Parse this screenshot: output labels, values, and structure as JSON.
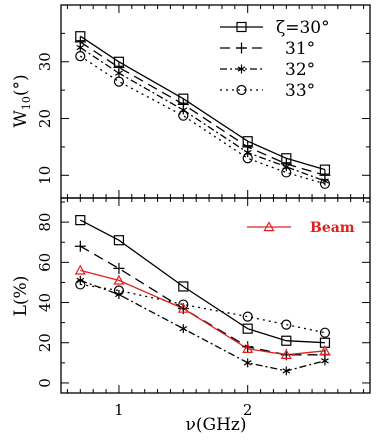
{
  "chart_data": [
    {
      "type": "line",
      "panel": "top",
      "ylabel_main": "W",
      "ylabel_sub": "10",
      "ylabel_tail": "(°)",
      "ylim": [
        6,
        40
      ],
      "yticks": [
        10,
        20,
        30
      ],
      "xlim": [
        0.55,
        2.95
      ],
      "grid": false,
      "legend_position": "top-right",
      "legend_prefix": "ζ=",
      "series": [
        {
          "name": "30°",
          "marker": "square",
          "dash": "",
          "x": [
            0.7,
            1.0,
            1.5,
            2.0,
            2.3,
            2.6
          ],
          "y": [
            34.5,
            30.0,
            23.5,
            16.0,
            13.0,
            11.0
          ]
        },
        {
          "name": "31°",
          "marker": "plus",
          "dash": "10,6",
          "x": [
            0.7,
            1.0,
            1.5,
            2.0,
            2.3,
            2.6
          ],
          "y": [
            33.5,
            29.0,
            22.5,
            15.0,
            12.0,
            10.0
          ]
        },
        {
          "name": "32°",
          "marker": "star",
          "dash": "7,3,2,3",
          "x": [
            0.7,
            1.0,
            1.5,
            2.0,
            2.3,
            2.6
          ],
          "y": [
            32.5,
            28.0,
            21.5,
            14.0,
            11.5,
            9.0
          ]
        },
        {
          "name": "33°",
          "marker": "circle",
          "dash": "2,4",
          "x": [
            0.7,
            1.0,
            1.5,
            2.0,
            2.3,
            2.6
          ],
          "y": [
            31.0,
            26.5,
            20.5,
            13.0,
            10.5,
            8.5
          ]
        }
      ]
    },
    {
      "type": "line",
      "panel": "bottom",
      "ylabel": "L(%)",
      "ylim": [
        -5,
        92
      ],
      "yticks": [
        0,
        20,
        40,
        60,
        80
      ],
      "xlim": [
        0.55,
        2.95
      ],
      "xticks": [
        1,
        2
      ],
      "xlabel": "ν(GHz)",
      "grid": false,
      "legend_position": "top-right",
      "series": [
        {
          "marker": "square",
          "dash": "",
          "color": "#000000",
          "x": [
            0.7,
            1.0,
            1.5,
            2.0,
            2.3,
            2.6
          ],
          "y": [
            81,
            71,
            48,
            27,
            21,
            20
          ]
        },
        {
          "marker": "plus",
          "dash": "10,6",
          "color": "#000000",
          "x": [
            0.7,
            1.0,
            1.5,
            2.0,
            2.3,
            2.6
          ],
          "y": [
            68,
            57,
            37,
            18,
            14,
            14
          ]
        },
        {
          "marker": "star",
          "dash": "7,3,2,3",
          "color": "#000000",
          "x": [
            0.7,
            1.0,
            1.5,
            2.0,
            2.3,
            2.6
          ],
          "y": [
            51,
            44,
            27,
            10,
            6,
            11
          ]
        },
        {
          "marker": "circle",
          "dash": "2,4",
          "color": "#000000",
          "x": [
            0.7,
            1.0,
            1.5,
            2.0,
            2.3,
            2.6
          ],
          "y": [
            49,
            46,
            39,
            33,
            29,
            25
          ]
        },
        {
          "name": "Beam",
          "marker": "triangle",
          "dash": "",
          "color": "#e02020",
          "x": [
            0.7,
            1.0,
            1.5,
            2.0,
            2.3,
            2.6
          ],
          "y": [
            56,
            51,
            37,
            17,
            14,
            16
          ]
        }
      ]
    }
  ]
}
